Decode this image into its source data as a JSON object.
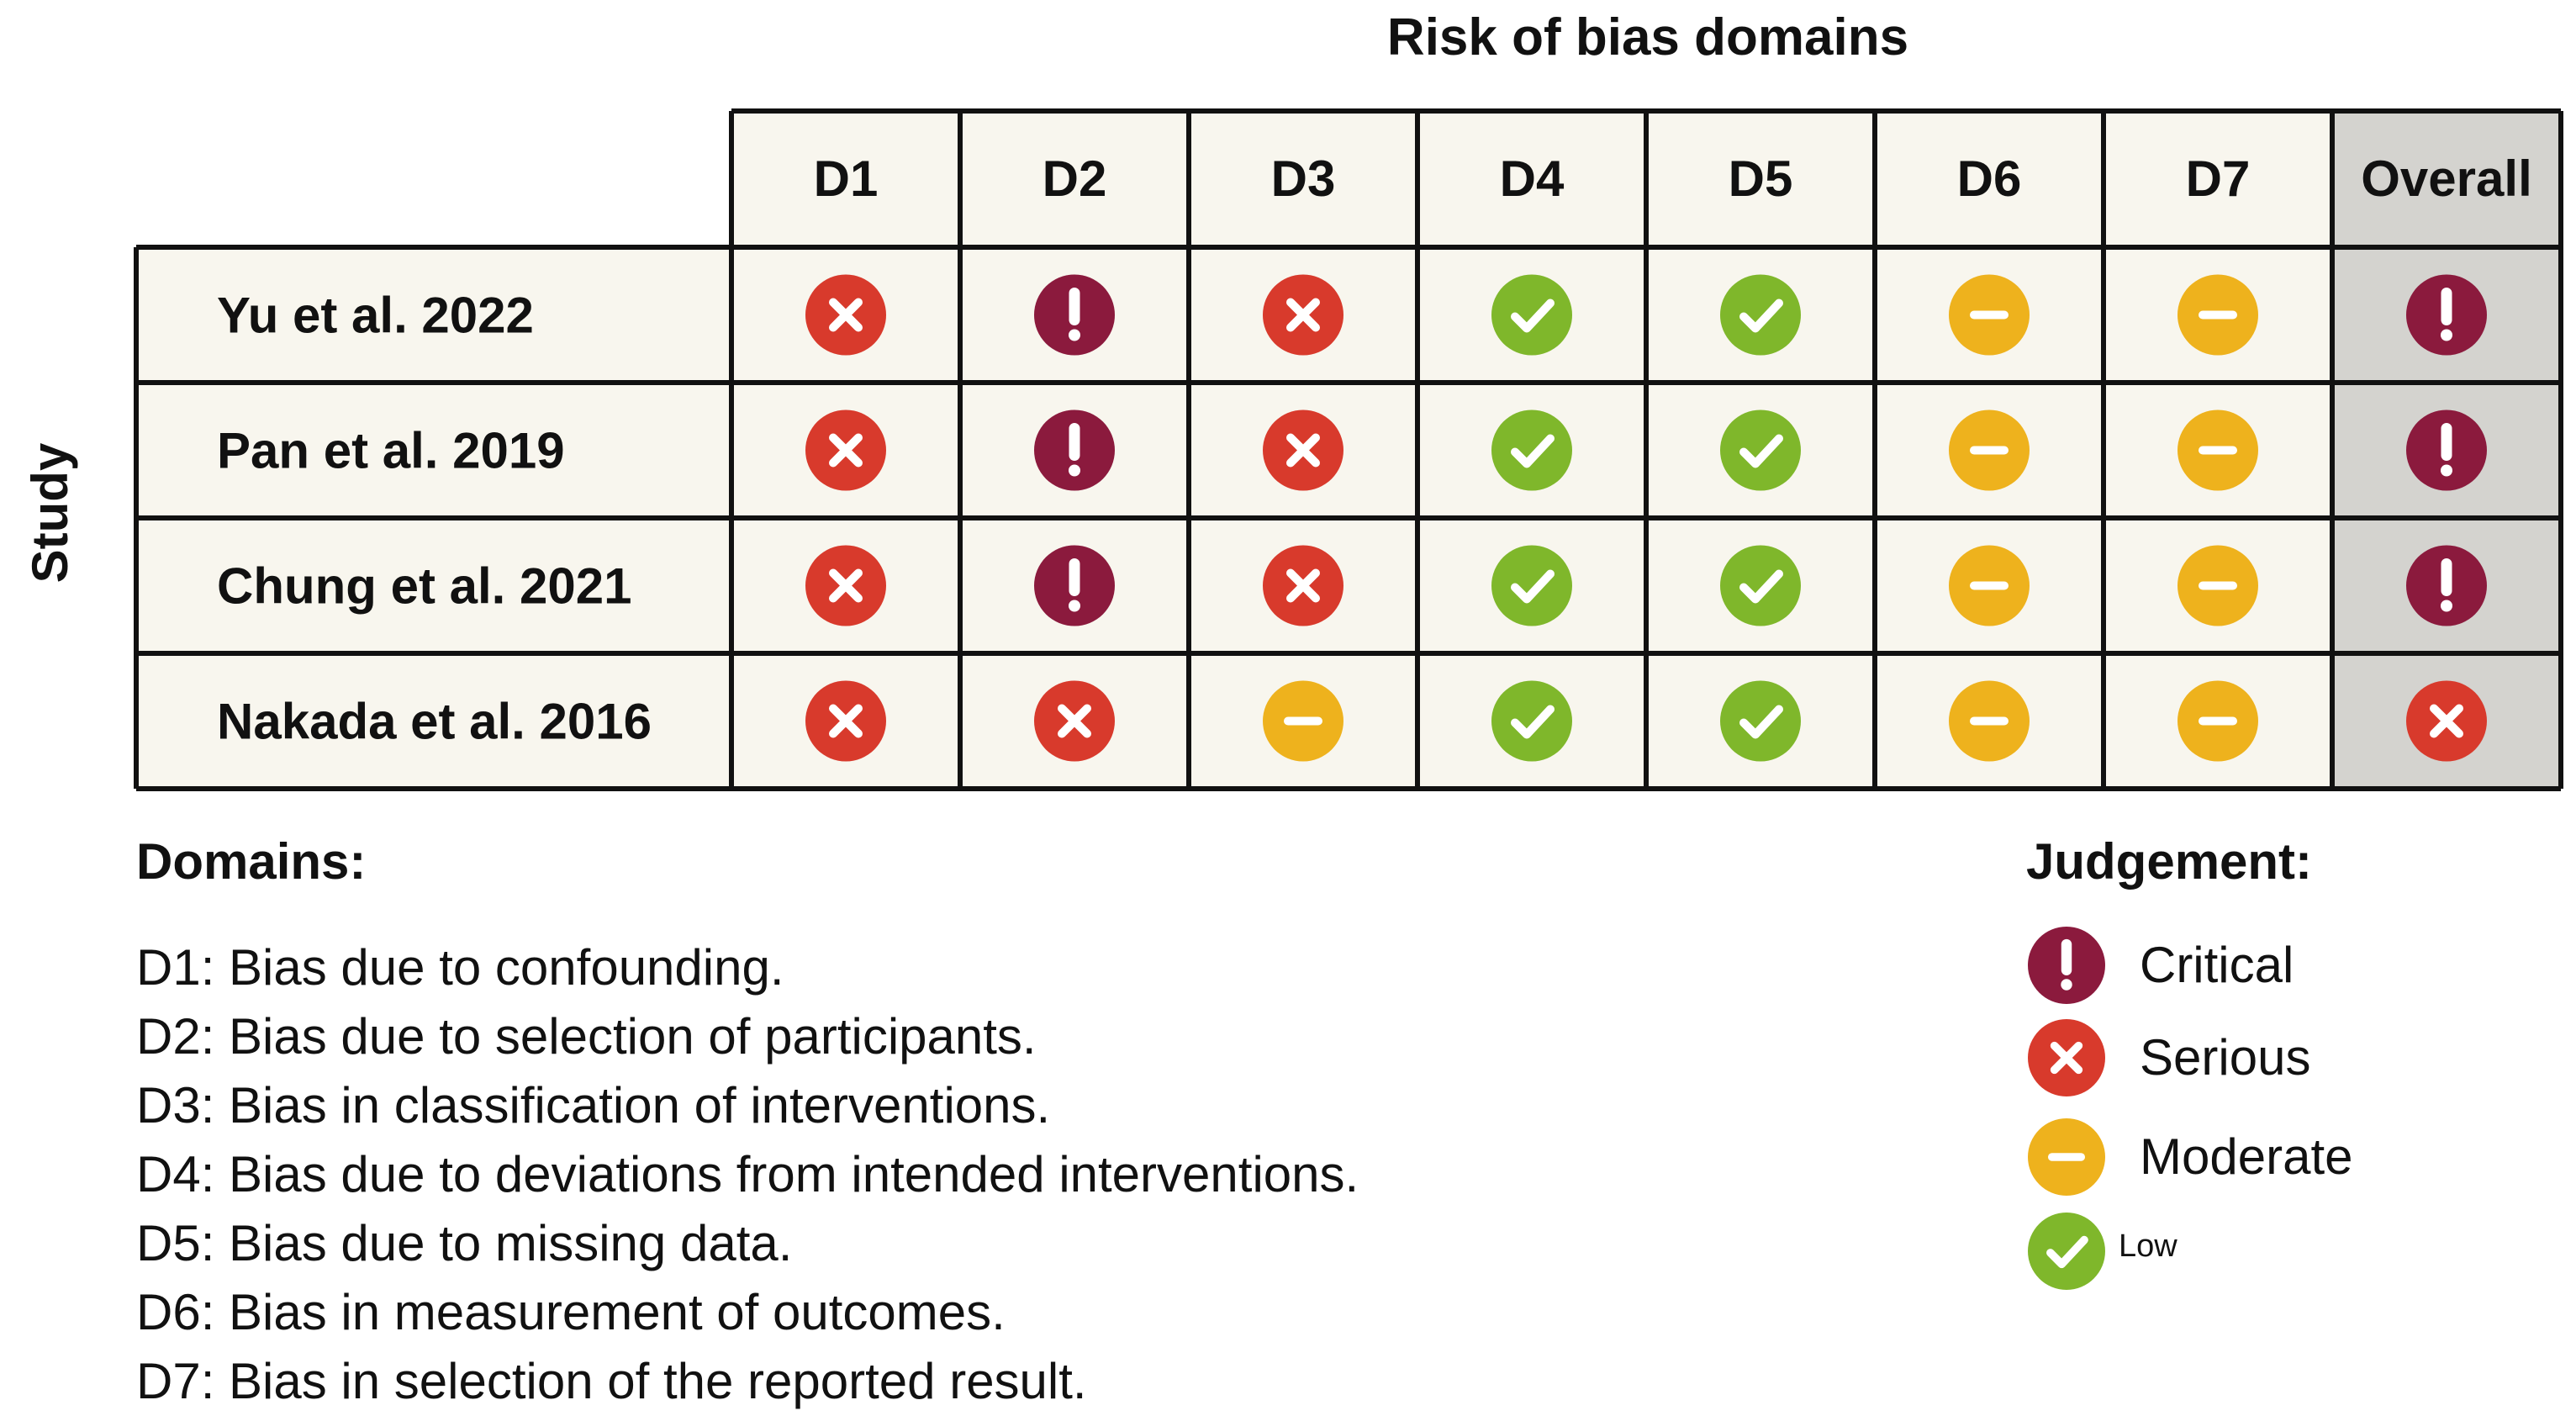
{
  "title": "Risk of bias domains",
  "y_axis_label": "Study",
  "columns": [
    "D1",
    "D2",
    "D3",
    "D4",
    "D5",
    "D6",
    "D7",
    "Overall"
  ],
  "rows": [
    {
      "study": "Yu et al. 2022",
      "judgements": [
        "serious",
        "critical",
        "serious",
        "low",
        "low",
        "moderate",
        "moderate",
        "critical"
      ]
    },
    {
      "study": "Pan et al. 2019",
      "judgements": [
        "serious",
        "critical",
        "serious",
        "low",
        "low",
        "moderate",
        "moderate",
        "critical"
      ]
    },
    {
      "study": "Chung et al. 2021",
      "judgements": [
        "serious",
        "critical",
        "serious",
        "low",
        "low",
        "moderate",
        "moderate",
        "critical"
      ]
    },
    {
      "study": "Nakada et al. 2016",
      "judgements": [
        "serious",
        "serious",
        "moderate",
        "low",
        "low",
        "moderate",
        "moderate",
        "serious"
      ]
    }
  ],
  "domains_heading": "Domains:",
  "domains": [
    "D1: Bias due to confounding.",
    "D2: Bias due to selection of participants.",
    "D3: Bias in classification of interventions.",
    "D4: Bias due to deviations from intended interventions.",
    "D5: Bias due to missing data.",
    "D6: Bias in measurement of outcomes.",
    "D7: Bias in selection of the reported result."
  ],
  "judgement_heading": "Judgement:",
  "legend": [
    {
      "key": "critical",
      "label": "Critical"
    },
    {
      "key": "serious",
      "label": "Serious"
    },
    {
      "key": "moderate",
      "label": "Moderate"
    },
    {
      "key": "low",
      "label": "Low"
    }
  ],
  "colors": {
    "critical": "#8b1a3d",
    "serious": "#d83a2c",
    "moderate": "#eeb21d",
    "low": "#7fb72b",
    "cell_background": "#f8f6ee",
    "overall_background": "#d4d3cf",
    "grid_line": "#111111"
  },
  "icons": {
    "critical": "exclamation-icon",
    "serious": "cross-icon",
    "moderate": "minus-icon",
    "low": "check-icon"
  }
}
